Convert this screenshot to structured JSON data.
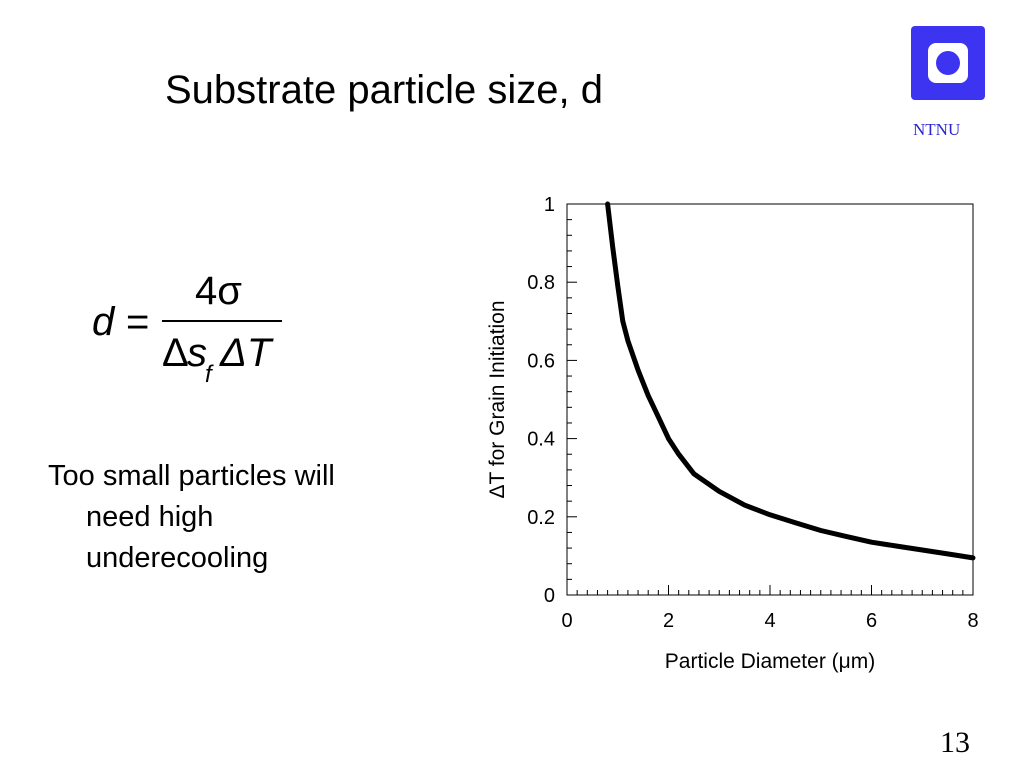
{
  "slide": {
    "title": "Substrate particle size, d",
    "logo_text": "NTNU",
    "bullet_lines": [
      "Too small particles will",
      "need high",
      "underecooling"
    ],
    "page_number": "13"
  },
  "formula": {
    "lhs": "d",
    "equals": "=",
    "numerator": "4σ",
    "denominator_delta1": "Δ",
    "denominator_s": "s",
    "denominator_subscript": "f",
    "denominator_delta2": "ΔT"
  },
  "colors": {
    "logo_blue": "#3d34f2",
    "logo_text": "#2d25cf",
    "curve": "#000000"
  },
  "chart_data": {
    "type": "line",
    "xlabel": "Particle Diameter (μm)",
    "ylabel": "ΔT for Grain Initiation",
    "xlim": [
      0,
      8
    ],
    "ylim": [
      0,
      1
    ],
    "xticks": [
      "0",
      "2",
      "4",
      "6",
      "8"
    ],
    "yticks": [
      "0",
      "0.2",
      "0.4",
      "0.6",
      "0.8",
      "1"
    ],
    "grid": false,
    "series": [
      {
        "x": [
          0.8,
          0.9,
          1.0,
          1.1,
          1.2,
          1.4,
          1.6,
          1.8,
          2.0,
          2.2,
          2.5,
          3.0,
          3.5,
          4.0,
          4.5,
          5.0,
          5.5,
          6.0,
          6.5,
          7.0,
          7.5,
          8.0
        ],
        "y": [
          1.0,
          0.89,
          0.79,
          0.7,
          0.65,
          0.575,
          0.51,
          0.455,
          0.4,
          0.36,
          0.31,
          0.265,
          0.23,
          0.205,
          0.185,
          0.165,
          0.15,
          0.135,
          0.125,
          0.115,
          0.105,
          0.095
        ]
      }
    ]
  }
}
